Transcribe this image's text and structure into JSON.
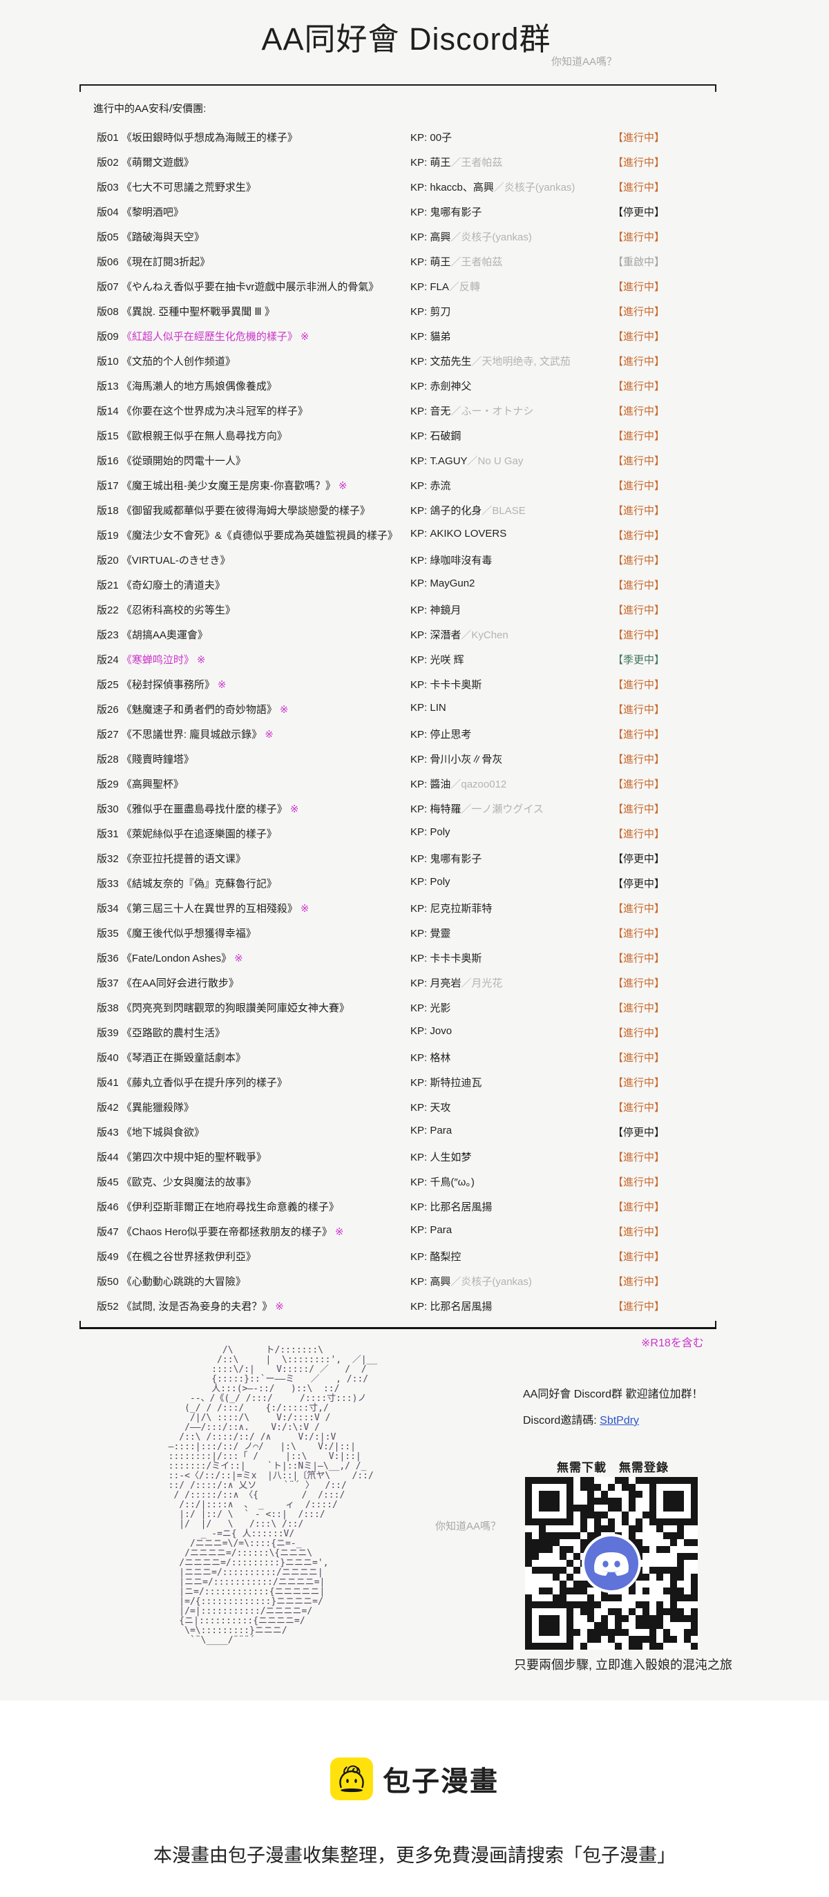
{
  "page": {
    "title": "AA同好會 Discord群",
    "subtitle": "你知道AA嗎？",
    "section_label": "進行中的AA安科/安價團:",
    "r18_note": "※R18を含む"
  },
  "colors": {
    "background": "#f6f6f4",
    "footer_background": "#ffffff",
    "text": "#1f1f1f",
    "magenta": "#cc33cc",
    "gray_text": "#a8a8a4",
    "alias_gray": "#b3b3af",
    "link_blue": "#2b55cc",
    "ascii_art": "#544660",
    "discord_blurple": "#5f73d9",
    "brand_yellow": "#ffe20d",
    "status": {
      "進行中": "#c8682c",
      "停更中": "#1f1f1f",
      "重啟中": "#a3a3a0",
      "季更中": "#41785f"
    }
  },
  "roster": {
    "kp_prefix": "KP:",
    "r18_mark": "※",
    "rows": [
      {
        "num": "版01",
        "title": "《坂田銀時似乎想成為海賊王的樣子》",
        "kp": "00子",
        "alias": "",
        "status": "進行中",
        "r18": false,
        "magenta": false
      },
      {
        "num": "版02",
        "title": "《萌爾文遊戲》",
        "kp": "萌王",
        "alias": "／王者帕茲",
        "status": "進行中",
        "r18": false,
        "magenta": false
      },
      {
        "num": "版03",
        "title": "《七大不可思議之荒野求生》",
        "kp": "hkaccb、高興",
        "alias": "／炎核子(yankas)",
        "status": "進行中",
        "r18": false,
        "magenta": false
      },
      {
        "num": "版04",
        "title": "《黎明酒吧》",
        "kp": "鬼哪有影子",
        "alias": "",
        "status": "停更中",
        "r18": false,
        "magenta": false
      },
      {
        "num": "版05",
        "title": "《踏破海與天空》",
        "kp": "高興",
        "alias": "／炎核子(yankas)",
        "status": "進行中",
        "r18": false,
        "magenta": false
      },
      {
        "num": "版06",
        "title": "《現在訂閱3折起》",
        "kp": "萌王",
        "alias": "／王者帕茲",
        "status": "重啟中",
        "r18": false,
        "magenta": false
      },
      {
        "num": "版07",
        "title": "《やんねえ香似乎要在抽卡vr遊戲中展示非洲人的骨氣》",
        "kp": "FLA",
        "alias": "／反轉",
        "status": "進行中",
        "r18": false,
        "magenta": false
      },
      {
        "num": "版08",
        "title": "《異說. 亞種中聖杯戰爭異聞 Ⅲ 》",
        "kp": "剪刀",
        "alias": "",
        "status": "進行中",
        "r18": false,
        "magenta": false
      },
      {
        "num": "版09",
        "title": "《紅超人似乎在經歷生化危機的樣子》",
        "kp": "貓弟",
        "alias": "",
        "status": "進行中",
        "r18": true,
        "magenta": true
      },
      {
        "num": "版10",
        "title": "《文茄的个人创作频道》",
        "kp": "文茄先生",
        "alias": "／天地明绝寺, 文武茄",
        "status": "進行中",
        "r18": false,
        "magenta": false
      },
      {
        "num": "版13",
        "title": "《海馬瀨人的地方馬娘偶像養成》",
        "kp": "赤劍神父",
        "alias": "",
        "status": "進行中",
        "r18": false,
        "magenta": false
      },
      {
        "num": "版14",
        "title": "《你要在这个世界成为决斗冠军的样子》",
        "kp": "音无",
        "alias": "／ふー・オトナシ",
        "status": "進行中",
        "r18": false,
        "magenta": false
      },
      {
        "num": "版15",
        "title": "《歐根親王似乎在無人島尋找方向》",
        "kp": "石破鋼",
        "alias": "",
        "status": "進行中",
        "r18": false,
        "magenta": false
      },
      {
        "num": "版16",
        "title": "《從頭開始的閃電十一人》",
        "kp": "T.AGUY",
        "alias": "／No U Gay",
        "status": "進行中",
        "r18": false,
        "magenta": false
      },
      {
        "num": "版17",
        "title": "《魔王城出租-美少女魔王是房東-你喜歡嗎？》",
        "kp": "赤流",
        "alias": "",
        "status": "進行中",
        "r18": true,
        "magenta": false
      },
      {
        "num": "版18",
        "title": "《御留我威都華似乎要在彼得海姆大學談戀愛的樣子》",
        "kp": "鴿子的化身",
        "alias": "／BLASE",
        "status": "進行中",
        "r18": false,
        "magenta": false
      },
      {
        "num": "版19",
        "title": "《魔法少女不會死》&《貞德似乎要成為英雄監視員的樣子》",
        "kp": "AKIKO LOVERS",
        "alias": "",
        "status": "進行中",
        "r18": false,
        "magenta": false
      },
      {
        "num": "版20",
        "title": "《VIRTUAL-のきせき》",
        "kp": "綠咖啡沒有毒",
        "alias": "",
        "status": "進行中",
        "r18": false,
        "magenta": false
      },
      {
        "num": "版21",
        "title": "《奇幻廢土的清道夫》",
        "kp": "MayGun2",
        "alias": "",
        "status": "進行中",
        "r18": false,
        "magenta": false
      },
      {
        "num": "版22",
        "title": "《忍術科高校的劣等生》",
        "kp": "神鏡月",
        "alias": "",
        "status": "進行中",
        "r18": false,
        "magenta": false
      },
      {
        "num": "版23",
        "title": "《胡搞AA奧運會》",
        "kp": "深潛者",
        "alias": "／KyChen",
        "status": "進行中",
        "r18": false,
        "magenta": false
      },
      {
        "num": "版24",
        "title": "《寒蝉鸣泣时》",
        "kp": "光咲 辉",
        "alias": "",
        "status": "季更中",
        "r18": true,
        "magenta": true
      },
      {
        "num": "版25",
        "title": "《秘封探偵事務所》",
        "kp": "卡卡卡奥斯",
        "alias": "",
        "status": "進行中",
        "r18": true,
        "magenta": false
      },
      {
        "num": "版26",
        "title": "《魅魔速子和勇者們的奇妙物語》",
        "kp": "LIN",
        "alias": "",
        "status": "進行中",
        "r18": true,
        "magenta": false
      },
      {
        "num": "版27",
        "title": "《不思議世界: 龐貝城啟示錄》",
        "kp": "停止思考",
        "alias": "",
        "status": "進行中",
        "r18": true,
        "magenta": false
      },
      {
        "num": "版28",
        "title": "《賤賣時鐘塔》",
        "kp": "骨川小灰∥骨灰",
        "alias": "",
        "status": "進行中",
        "r18": false,
        "magenta": false
      },
      {
        "num": "版29",
        "title": "《高興聖杯》",
        "kp": "醬油",
        "alias": "／qazoo012",
        "status": "進行中",
        "r18": false,
        "magenta": false
      },
      {
        "num": "版30",
        "title": "《雅似乎在噩盡島尋找什麼的樣子》",
        "kp": "梅特羅",
        "alias": "／一ノ瀬ウグイス",
        "status": "進行中",
        "r18": true,
        "magenta": false
      },
      {
        "num": "版31",
        "title": "《萊妮絲似乎在追逐樂園的樣子》",
        "kp": "Poly",
        "alias": "",
        "status": "進行中",
        "r18": false,
        "magenta": false
      },
      {
        "num": "版32",
        "title": "《奈亚拉托提普的语文课》",
        "kp": "鬼哪有影子",
        "alias": "",
        "status": "停更中",
        "r18": false,
        "magenta": false
      },
      {
        "num": "版33",
        "title": "《結城友奈的『偽』克蘇魯行記》",
        "kp": "Poly",
        "alias": "",
        "status": "停更中",
        "r18": false,
        "magenta": false
      },
      {
        "num": "版34",
        "title": "《第三屆三十人在異世界的互相殘殺》",
        "kp": "尼克拉斯菲特",
        "alias": "",
        "status": "進行中",
        "r18": true,
        "magenta": false
      },
      {
        "num": "版35",
        "title": "《魔王後代似乎想獲得幸福》",
        "kp": "覺靈",
        "alias": "",
        "status": "進行中",
        "r18": false,
        "magenta": false
      },
      {
        "num": "版36",
        "title": "《Fate/London Ashes》",
        "kp": "卡卡卡奥斯",
        "alias": "",
        "status": "進行中",
        "r18": true,
        "magenta": false
      },
      {
        "num": "版37",
        "title": "《在AA同好会进行散步》",
        "kp": "月亮岩",
        "alias": "／月光花",
        "status": "進行中",
        "r18": false,
        "magenta": false
      },
      {
        "num": "版38",
        "title": "《閃亮亮到閃瞎觀眾的狗眼讚美阿庫婭女神大賽》",
        "kp": "光影",
        "alias": "",
        "status": "進行中",
        "r18": false,
        "magenta": false
      },
      {
        "num": "版39",
        "title": "《亞路歐的農村生活》",
        "kp": "Jovo",
        "alias": "",
        "status": "進行中",
        "r18": false,
        "magenta": false
      },
      {
        "num": "版40",
        "title": "《琴酒正在撕毀童話劇本》",
        "kp": "格林",
        "alias": "",
        "status": "進行中",
        "r18": false,
        "magenta": false
      },
      {
        "num": "版41",
        "title": "《藤丸立香似乎在提升序列的樣子》",
        "kp": "斯特拉迪瓦",
        "alias": "",
        "status": "進行中",
        "r18": false,
        "magenta": false
      },
      {
        "num": "版42",
        "title": "《異能獵殺隊》",
        "kp": "天攻",
        "alias": "",
        "status": "進行中",
        "r18": false,
        "magenta": false
      },
      {
        "num": "版43",
        "title": "《地下城與食欲》",
        "kp": "Para",
        "alias": "",
        "status": "停更中",
        "r18": false,
        "magenta": false
      },
      {
        "num": "版44",
        "title": "《第四次中規中矩的聖杯戰爭》",
        "kp": "人生如梦",
        "alias": "",
        "status": "進行中",
        "r18": false,
        "magenta": false
      },
      {
        "num": "版45",
        "title": "《歐克、少女與魔法的故事》",
        "kp": "千鳥(″ω。)",
        "alias": "",
        "status": "進行中",
        "r18": false,
        "magenta": false
      },
      {
        "num": "版46",
        "title": "《伊利亞斯菲爾正在地府尋找生命意義的樣子》",
        "kp": "比那名居風揚",
        "alias": "",
        "status": "進行中",
        "r18": false,
        "magenta": false
      },
      {
        "num": "版47",
        "title": "《Chaos Hero似乎要在帝都拯救朋友的樣子》",
        "kp": "Para",
        "alias": "",
        "status": "進行中",
        "r18": true,
        "magenta": false
      },
      {
        "num": "版49",
        "title": "《在楓之谷世界拯救伊利亞》",
        "kp": "酪梨控",
        "alias": "",
        "status": "進行中",
        "r18": false,
        "magenta": false
      },
      {
        "num": "版50",
        "title": "《心動動心跳跳的大冒險》",
        "kp": "高興",
        "alias": "／炎核子(yankas)",
        "status": "進行中",
        "r18": false,
        "magenta": false
      },
      {
        "num": "版52",
        "title": "《試問, 汝是否為妾身的夫君？》",
        "kp": "比那名居風揚",
        "alias": "",
        "status": "進行中",
        "r18": true,
        "magenta": false
      }
    ]
  },
  "ascii_art": {
    "lines": [
      "            /\\      ト/:::::::\\",
      "           /::\\     |  \\::::::::',  ／|__",
      "          ::::\\/:|    V:::::/ ／   /  /",
      "          {:::::}::`ー――ミ   ／   , /::/",
      "          人:::(>―-::/   )::\\  ::/",
      "      --、/《(_/ /:::/     /::::寸:::)ノ",
      "     (_/ / /:::/    {:/:::::寸,/",
      "      /|/\\ ::::/\\     V:/::::V /",
      "     /――/:::/::∧.    V:/:\\:V /",
      "    /::\\ /::::/::/ /∧     V:/:|:V",
      "  ―::::|:::/::/ ノ⌒/   |:\\    V:/|::|",
      "  ::::::::|/:::「 /     |::\\    V:|::|",
      "  :::::::/ミイ::|    `ト|::Nミ|―\\__,/ /_",
      "  ::-<〈/::/::|=ミx  |八::|〔笊ヤ\\    /::/",
      "  ::/ /::::/:∧ 乂ソ     `¨´ 〉  /::/",
      "   / /:::::/::∧ 〈{        /  /:::/",
      "    /::/|::::∧  、 _    ィ  /::::/",
      "    |:/ |::/ \\  ` - <::|  /:::/",
      "    |/  |/   \\   /:::\\ /::/",
      "        _ -=ニ{ 人::::::V/",
      "      /ニニニ=\\/=\\::::{ニ=-_",
      "     /ニニニニ=/::::::\\{ニニニ\\",
      "    /ニニニニ=/:::::::::}ニニニ=',",
      "    |ニニニ=/::::::::::/ニニニニ|",
      "    |ニニ=/:::::::::::/ニニニニ=|",
      "    |ニ=/::::::::::::{ニニニニニ|",
      "    |=/{:::::::::::::}ニニニニ=/",
      "    |/=|:::::::::::/ニニニニ=/",
      "    {ニ|::::::::::{ニニニニ=/",
      "     \\=\\:::::::::}ニニニ/",
      "      `¨\\____/¨¨¨´"
    ]
  },
  "invite": {
    "headline": "AA同好會 Discord群  歡迎諸位加群！",
    "code_label": "Discord邀請碼: ",
    "code": "SbtPdry",
    "perks": "無需下載　無需登錄",
    "aside": "你知道AA嗎？",
    "qr_caption": "只要兩個步驟, 立即進入骰娘的混沌之旅"
  },
  "footer": {
    "brand": "包子漫畫",
    "tagline": "本漫畫由包子漫畫收集整理，更多免費漫画請搜索「包子漫畫」"
  }
}
